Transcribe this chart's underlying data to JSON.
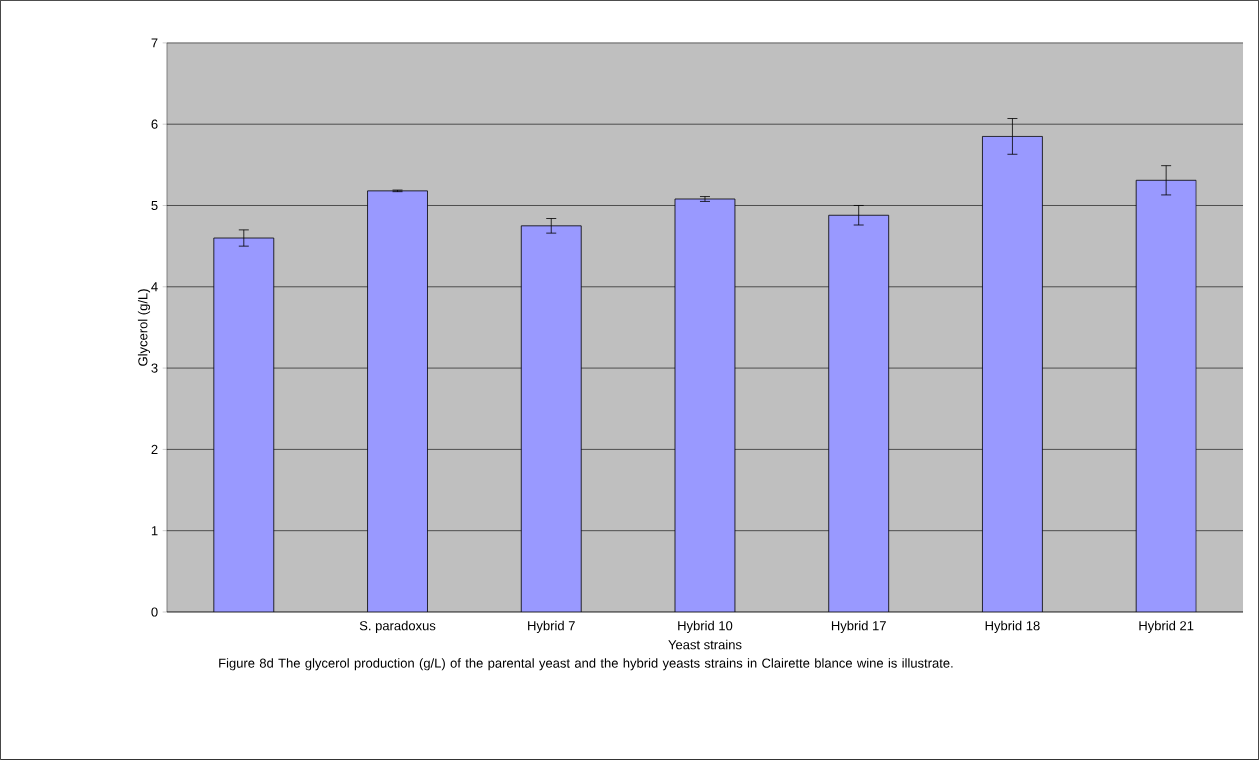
{
  "chart_data": {
    "type": "bar",
    "xlabel": "Yeast strains",
    "ylabel": "Glycerol (g/L)",
    "categories": [
      null,
      "S. paradoxus",
      "Hybrid 7",
      "Hybrid 10",
      "Hybrid 17",
      "Hybrid 18",
      "Hybrid 21"
    ],
    "values": [
      4.6,
      5.18,
      4.75,
      5.08,
      4.88,
      5.85,
      5.31
    ],
    "errors": [
      0.1,
      0.01,
      0.09,
      0.03,
      0.12,
      0.22,
      0.18
    ],
    "color": "#9999ff",
    "ylim": [
      0,
      7
    ],
    "yticks": [
      0,
      1,
      2,
      3,
      4,
      5,
      6,
      7
    ],
    "grid": "y",
    "annotations": [
      "Figure 8d The glycerol production (g/L) of the parental yeast and the hybrid yeasts strains in Clairette blance wine is illustrate."
    ]
  }
}
